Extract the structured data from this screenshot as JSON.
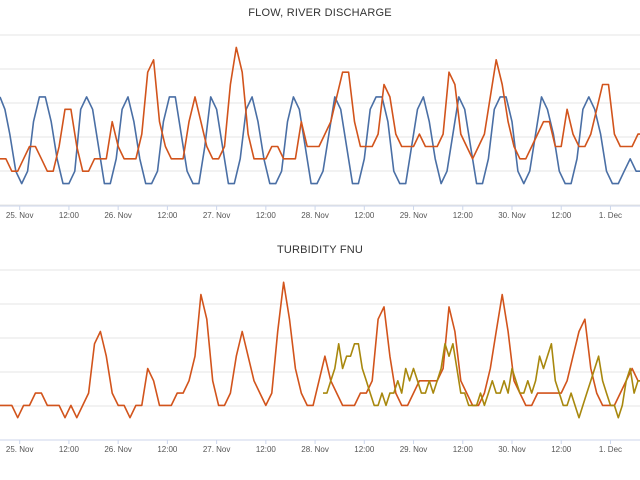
{
  "chart_data": [
    {
      "type": "line",
      "title": "FLOW, RIVER DISCHARGE",
      "xlabel": "",
      "ylabel": "",
      "x_ticks": [
        "25. Nov",
        "12:00",
        "26. Nov",
        "12:00",
        "27. Nov",
        "12:00",
        "28. Nov",
        "12:00",
        "29. Nov",
        "12:00",
        "30. Nov",
        "12:00",
        "1. Dec"
      ],
      "x_tick_positions": [
        0.5,
        1,
        1.5,
        2,
        2.5,
        3,
        3.5,
        4,
        4.5,
        5,
        5.5,
        6,
        6.5
      ],
      "x_range": [
        0.3,
        6.8
      ],
      "grid": true,
      "legend": "none",
      "series": [
        {
          "color": "#4a6fa5",
          "x": [
            0.3,
            0.35,
            0.4,
            0.46,
            0.52,
            0.58,
            0.64,
            0.7,
            0.76,
            0.82,
            0.88,
            0.94,
            1.0,
            1.06,
            1.12,
            1.18,
            1.24,
            1.3,
            1.36,
            1.42,
            1.48,
            1.54,
            1.6,
            1.66,
            1.72,
            1.78,
            1.84,
            1.9,
            1.96,
            2.02,
            2.08,
            2.14,
            2.2,
            2.26,
            2.32,
            2.38,
            2.44,
            2.5,
            2.56,
            2.62,
            2.68,
            2.74,
            2.8,
            2.86,
            2.92,
            2.98,
            3.04,
            3.1,
            3.16,
            3.22,
            3.28,
            3.34,
            3.4,
            3.46,
            3.52,
            3.58,
            3.64,
            3.7,
            3.76,
            3.82,
            3.88,
            3.94,
            4.0,
            4.06,
            4.12,
            4.18,
            4.24,
            4.3,
            4.36,
            4.42,
            4.48,
            4.54,
            4.6,
            4.66,
            4.72,
            4.78,
            4.84,
            4.9,
            4.96,
            5.02,
            5.08,
            5.14,
            5.2,
            5.26,
            5.32,
            5.38,
            5.44,
            5.5,
            5.56,
            5.62,
            5.68,
            5.74,
            5.8,
            5.86,
            5.92,
            5.98,
            6.04,
            6.1,
            6.16,
            6.22,
            6.28,
            6.34,
            6.4,
            6.46,
            6.52,
            6.58,
            6.64,
            6.7,
            6.76,
            6.8
          ],
          "y": [
            8,
            7,
            5,
            2,
            1,
            2,
            6,
            8,
            8,
            6,
            3,
            1,
            1,
            2,
            7,
            8,
            7,
            4,
            1,
            1,
            3,
            7,
            8,
            6,
            3,
            1,
            1,
            2,
            6,
            8,
            8,
            5,
            2,
            1,
            1,
            4,
            8,
            7,
            4,
            1,
            1,
            3,
            7,
            8,
            6,
            3,
            1,
            1,
            2,
            6,
            8,
            7,
            4,
            1,
            1,
            2,
            5,
            8,
            7,
            4,
            1,
            1,
            3,
            7,
            8,
            8,
            6,
            2,
            1,
            1,
            4,
            7,
            8,
            6,
            3,
            1,
            2,
            5,
            8,
            7,
            4,
            1,
            1,
            3,
            7,
            8,
            8,
            6,
            2,
            1,
            2,
            5,
            8,
            7,
            5,
            2,
            1,
            1,
            3,
            7,
            8,
            7,
            5,
            2,
            1,
            1,
            2,
            3,
            2,
            2
          ]
        },
        {
          "color": "#d2541c",
          "x": [
            0.3,
            0.36,
            0.42,
            0.48,
            0.54,
            0.6,
            0.66,
            0.72,
            0.78,
            0.84,
            0.9,
            0.96,
            1.02,
            1.08,
            1.14,
            1.2,
            1.26,
            1.32,
            1.38,
            1.44,
            1.5,
            1.56,
            1.62,
            1.68,
            1.74,
            1.8,
            1.86,
            1.92,
            1.98,
            2.04,
            2.1,
            2.16,
            2.22,
            2.28,
            2.34,
            2.4,
            2.46,
            2.52,
            2.58,
            2.64,
            2.7,
            2.76,
            2.82,
            2.88,
            2.94,
            3.0,
            3.06,
            3.12,
            3.18,
            3.24,
            3.3,
            3.36,
            3.42,
            3.48,
            3.54,
            3.6,
            3.66,
            3.72,
            3.78,
            3.84,
            3.9,
            3.96,
            4.02,
            4.08,
            4.14,
            4.2,
            4.26,
            4.32,
            4.38,
            4.44,
            4.5,
            4.56,
            4.62,
            4.68,
            4.74,
            4.8,
            4.86,
            4.92,
            4.98,
            5.04,
            5.1,
            5.16,
            5.22,
            5.28,
            5.34,
            5.4,
            5.46,
            5.52,
            5.58,
            5.64,
            5.7,
            5.76,
            5.82,
            5.88,
            5.94,
            6.0,
            6.06,
            6.12,
            6.18,
            6.24,
            6.3,
            6.36,
            6.42,
            6.48,
            6.54,
            6.6,
            6.66,
            6.72,
            6.78,
            6.8
          ],
          "y": [
            3,
            3,
            2,
            2,
            3,
            4,
            4,
            3,
            2,
            2,
            4,
            7,
            7,
            4,
            2,
            2,
            3,
            3,
            3,
            6,
            4,
            3,
            3,
            3,
            5,
            10,
            11,
            6,
            4,
            3,
            3,
            3,
            6,
            8,
            6,
            4,
            3,
            3,
            4,
            9,
            12,
            10,
            5,
            3,
            3,
            3,
            4,
            4,
            3,
            3,
            3,
            6,
            4,
            4,
            4,
            5,
            6,
            8,
            10,
            10,
            6,
            4,
            4,
            4,
            5,
            9,
            8,
            5,
            4,
            4,
            4,
            5,
            4,
            4,
            4,
            5,
            10,
            9,
            5,
            4,
            3,
            4,
            5,
            8,
            11,
            9,
            6,
            4,
            3,
            3,
            4,
            5,
            6,
            6,
            4,
            4,
            7,
            5,
            4,
            4,
            5,
            7,
            9,
            9,
            5,
            4,
            4,
            4,
            5,
            5
          ]
        }
      ]
    },
    {
      "type": "line",
      "title": "TURBIDITY FNU",
      "xlabel": "",
      "ylabel": "",
      "x_ticks": [
        "25. Nov",
        "12:00",
        "26. Nov",
        "12:00",
        "27. Nov",
        "12:00",
        "28. Nov",
        "12:00",
        "29. Nov",
        "12:00",
        "30. Nov",
        "12:00",
        "1. Dec"
      ],
      "x_tick_positions": [
        0.5,
        1,
        1.5,
        2,
        2.5,
        3,
        3.5,
        4,
        4.5,
        5,
        5.5,
        6,
        6.5
      ],
      "x_range": [
        0.3,
        6.8
      ],
      "grid": true,
      "legend": "none",
      "series": [
        {
          "color": "#d2541c",
          "x": [
            0.3,
            0.36,
            0.42,
            0.48,
            0.54,
            0.6,
            0.66,
            0.72,
            0.78,
            0.84,
            0.9,
            0.96,
            1.02,
            1.08,
            1.14,
            1.2,
            1.26,
            1.32,
            1.38,
            1.44,
            1.5,
            1.56,
            1.62,
            1.68,
            1.74,
            1.8,
            1.86,
            1.92,
            1.98,
            2.04,
            2.1,
            2.16,
            2.22,
            2.28,
            2.34,
            2.4,
            2.46,
            2.52,
            2.58,
            2.64,
            2.7,
            2.76,
            2.82,
            2.88,
            2.94,
            3.0,
            3.06,
            3.12,
            3.18,
            3.24,
            3.3,
            3.36,
            3.42,
            3.48,
            3.54,
            3.6,
            3.66,
            3.72,
            3.78,
            3.84,
            3.9,
            3.96,
            4.02,
            4.08,
            4.14,
            4.2,
            4.26,
            4.32,
            4.38,
            4.44,
            4.5,
            4.56,
            4.62,
            4.68,
            4.74,
            4.8,
            4.86,
            4.92,
            4.98,
            5.04,
            5.1,
            5.16,
            5.22,
            5.28,
            5.34,
            5.4,
            5.46,
            5.52,
            5.58,
            5.64,
            5.7,
            5.76,
            5.82,
            5.88,
            5.94,
            6.0,
            6.06,
            6.12,
            6.18,
            6.24,
            6.3,
            6.36,
            6.42,
            6.48,
            6.54,
            6.6,
            6.66,
            6.72,
            6.78,
            6.8
          ],
          "y": [
            2,
            2,
            2,
            1,
            2,
            2,
            3,
            3,
            2,
            2,
            2,
            1,
            2,
            1,
            2,
            3,
            7,
            8,
            6,
            3,
            2,
            2,
            1,
            2,
            2,
            5,
            4,
            2,
            2,
            2,
            3,
            3,
            4,
            6,
            11,
            9,
            4,
            2,
            2,
            3,
            6,
            8,
            6,
            4,
            3,
            2,
            3,
            8,
            12,
            9,
            5,
            3,
            2,
            2,
            4,
            6,
            4,
            3,
            2,
            2,
            2,
            3,
            3,
            4,
            9,
            10,
            6,
            3,
            2,
            2,
            3,
            4,
            4,
            4,
            4,
            5,
            10,
            8,
            4,
            3,
            2,
            2,
            3,
            5,
            8,
            11,
            8,
            4,
            3,
            2,
            2,
            3,
            3,
            3,
            3,
            3,
            4,
            6,
            8,
            9,
            5,
            3,
            2,
            2,
            2,
            3,
            4,
            5,
            4,
            4
          ]
        },
        {
          "color": "#a8880e",
          "x": [
            3.58,
            3.62,
            3.66,
            3.7,
            3.74,
            3.78,
            3.82,
            3.86,
            3.9,
            3.94,
            3.98,
            4.02,
            4.06,
            4.1,
            4.14,
            4.18,
            4.22,
            4.26,
            4.3,
            4.34,
            4.38,
            4.42,
            4.46,
            4.5,
            4.54,
            4.58,
            4.62,
            4.66,
            4.7,
            4.74,
            4.78,
            4.82,
            4.86,
            4.9,
            4.94,
            4.98,
            5.02,
            5.06,
            5.1,
            5.14,
            5.18,
            5.22,
            5.26,
            5.3,
            5.34,
            5.38,
            5.42,
            5.46,
            5.5,
            5.54,
            5.58,
            5.62,
            5.66,
            5.7,
            5.74,
            5.78,
            5.82,
            5.86,
            5.9,
            5.94,
            5.98,
            6.02,
            6.06,
            6.1,
            6.14,
            6.18,
            6.22,
            6.26,
            6.3,
            6.34,
            6.38,
            6.42,
            6.46,
            6.5,
            6.54,
            6.58,
            6.62,
            6.66,
            6.7,
            6.74,
            6.78,
            6.8
          ],
          "y": [
            3,
            3,
            4,
            5,
            7,
            5,
            6,
            6,
            7,
            7,
            5,
            4,
            3,
            2,
            2,
            3,
            2,
            3,
            3,
            4,
            3,
            5,
            4,
            5,
            4,
            3,
            3,
            4,
            3,
            4,
            5,
            7,
            6,
            7,
            5,
            3,
            3,
            2,
            2,
            2,
            3,
            2,
            3,
            4,
            3,
            3,
            4,
            3,
            5,
            4,
            3,
            3,
            4,
            3,
            4,
            6,
            5,
            6,
            7,
            4,
            3,
            2,
            2,
            3,
            2,
            1,
            2,
            3,
            4,
            5,
            6,
            4,
            3,
            2,
            2,
            1,
            2,
            4,
            5,
            3,
            4,
            4
          ]
        }
      ]
    }
  ]
}
